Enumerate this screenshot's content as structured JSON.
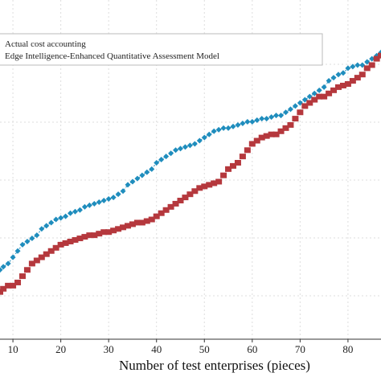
{
  "chart_data": {
    "type": "scatter",
    "xlabel": "Number of test enterprises (pieces)",
    "ylabel": "",
    "xlim": [
      7.3,
      86.9
    ],
    "ylim": [
      0,
      100
    ],
    "x_ticks": [
      10,
      20,
      30,
      40,
      50,
      60,
      70,
      80
    ],
    "grid": true,
    "legend_position": "top-left",
    "legend": [
      "Actual cost accounting",
      "Edge Intelligence-Enhanced Quantitative Assessment Model"
    ],
    "colors": {
      "blue_series": "#1f8dbd",
      "red_series": "#b5383d",
      "grid": "#dddddd",
      "axis": "#333333"
    },
    "series": [
      {
        "marker": "diamond",
        "color": "#1f8dbd",
        "x": [
          7.3,
          8,
          9,
          10,
          11,
          12,
          13,
          14,
          15,
          16,
          17,
          18,
          19,
          20,
          21,
          22,
          23,
          24,
          25,
          26,
          27,
          28,
          29,
          30,
          31,
          32,
          33,
          34,
          35,
          36,
          37,
          38,
          39,
          40,
          41,
          42,
          43,
          44,
          45,
          46,
          47,
          48,
          49,
          50,
          51,
          52,
          53,
          54,
          55,
          56,
          57,
          58,
          59,
          60,
          61,
          62,
          63,
          64,
          65,
          66,
          67,
          68,
          69,
          70,
          71,
          72,
          73,
          74,
          75,
          76,
          77,
          78,
          79,
          80,
          81,
          82,
          83,
          84,
          85,
          86,
          86.9
        ],
        "values": [
          22,
          23,
          24,
          26,
          28,
          30,
          31,
          32,
          33,
          35,
          36,
          37,
          38,
          38.5,
          39,
          40,
          40.5,
          41,
          42,
          42.5,
          43,
          43.5,
          44,
          44.5,
          45,
          46,
          47,
          49,
          50,
          51,
          52,
          53,
          54,
          56,
          57,
          58,
          59,
          60,
          60.5,
          61,
          61.5,
          62,
          63,
          64,
          65,
          66,
          66.5,
          67,
          67,
          67.5,
          68,
          68.5,
          69,
          69,
          69.5,
          70,
          70,
          70.5,
          71,
          71,
          72,
          73,
          74,
          75,
          76,
          77,
          78,
          79,
          80,
          82,
          83,
          84,
          84.5,
          86,
          86.5,
          87,
          87,
          88,
          89,
          90,
          91
        ]
      },
      {
        "marker": "square",
        "color": "#b5383d",
        "x": [
          7.3,
          8,
          9,
          10,
          11,
          12,
          13,
          14,
          15,
          16,
          17,
          18,
          19,
          20,
          21,
          22,
          23,
          24,
          25,
          26,
          27,
          28,
          29,
          30,
          31,
          32,
          33,
          34,
          35,
          36,
          37,
          38,
          39,
          40,
          41,
          42,
          43,
          44,
          45,
          46,
          47,
          48,
          49,
          50,
          51,
          52,
          53,
          54,
          55,
          56,
          57,
          58,
          59,
          60,
          61,
          62,
          63,
          64,
          65,
          66,
          67,
          68,
          69,
          70,
          71,
          72,
          73,
          74,
          75,
          76,
          77,
          78,
          79,
          80,
          81,
          82,
          83,
          84,
          85,
          86,
          86.9
        ],
        "values": [
          15,
          16,
          17,
          17,
          18,
          20,
          22,
          24,
          25,
          26,
          27,
          28,
          29,
          30,
          30.5,
          31,
          31.5,
          32,
          32.5,
          33,
          33,
          33.5,
          34,
          34,
          34.5,
          35,
          35.5,
          36,
          36.5,
          37,
          37,
          37.5,
          38,
          39,
          40,
          41,
          42,
          43,
          44,
          45,
          46,
          47,
          48,
          48.5,
          49,
          49.5,
          50,
          52,
          54,
          55,
          56,
          58,
          60,
          62,
          63,
          64,
          64.5,
          65,
          65,
          66,
          67,
          68,
          70,
          72,
          74,
          75,
          76,
          77,
          77,
          78,
          79,
          80,
          80.5,
          81,
          82,
          83,
          84,
          86,
          87,
          89,
          90
        ]
      }
    ]
  }
}
